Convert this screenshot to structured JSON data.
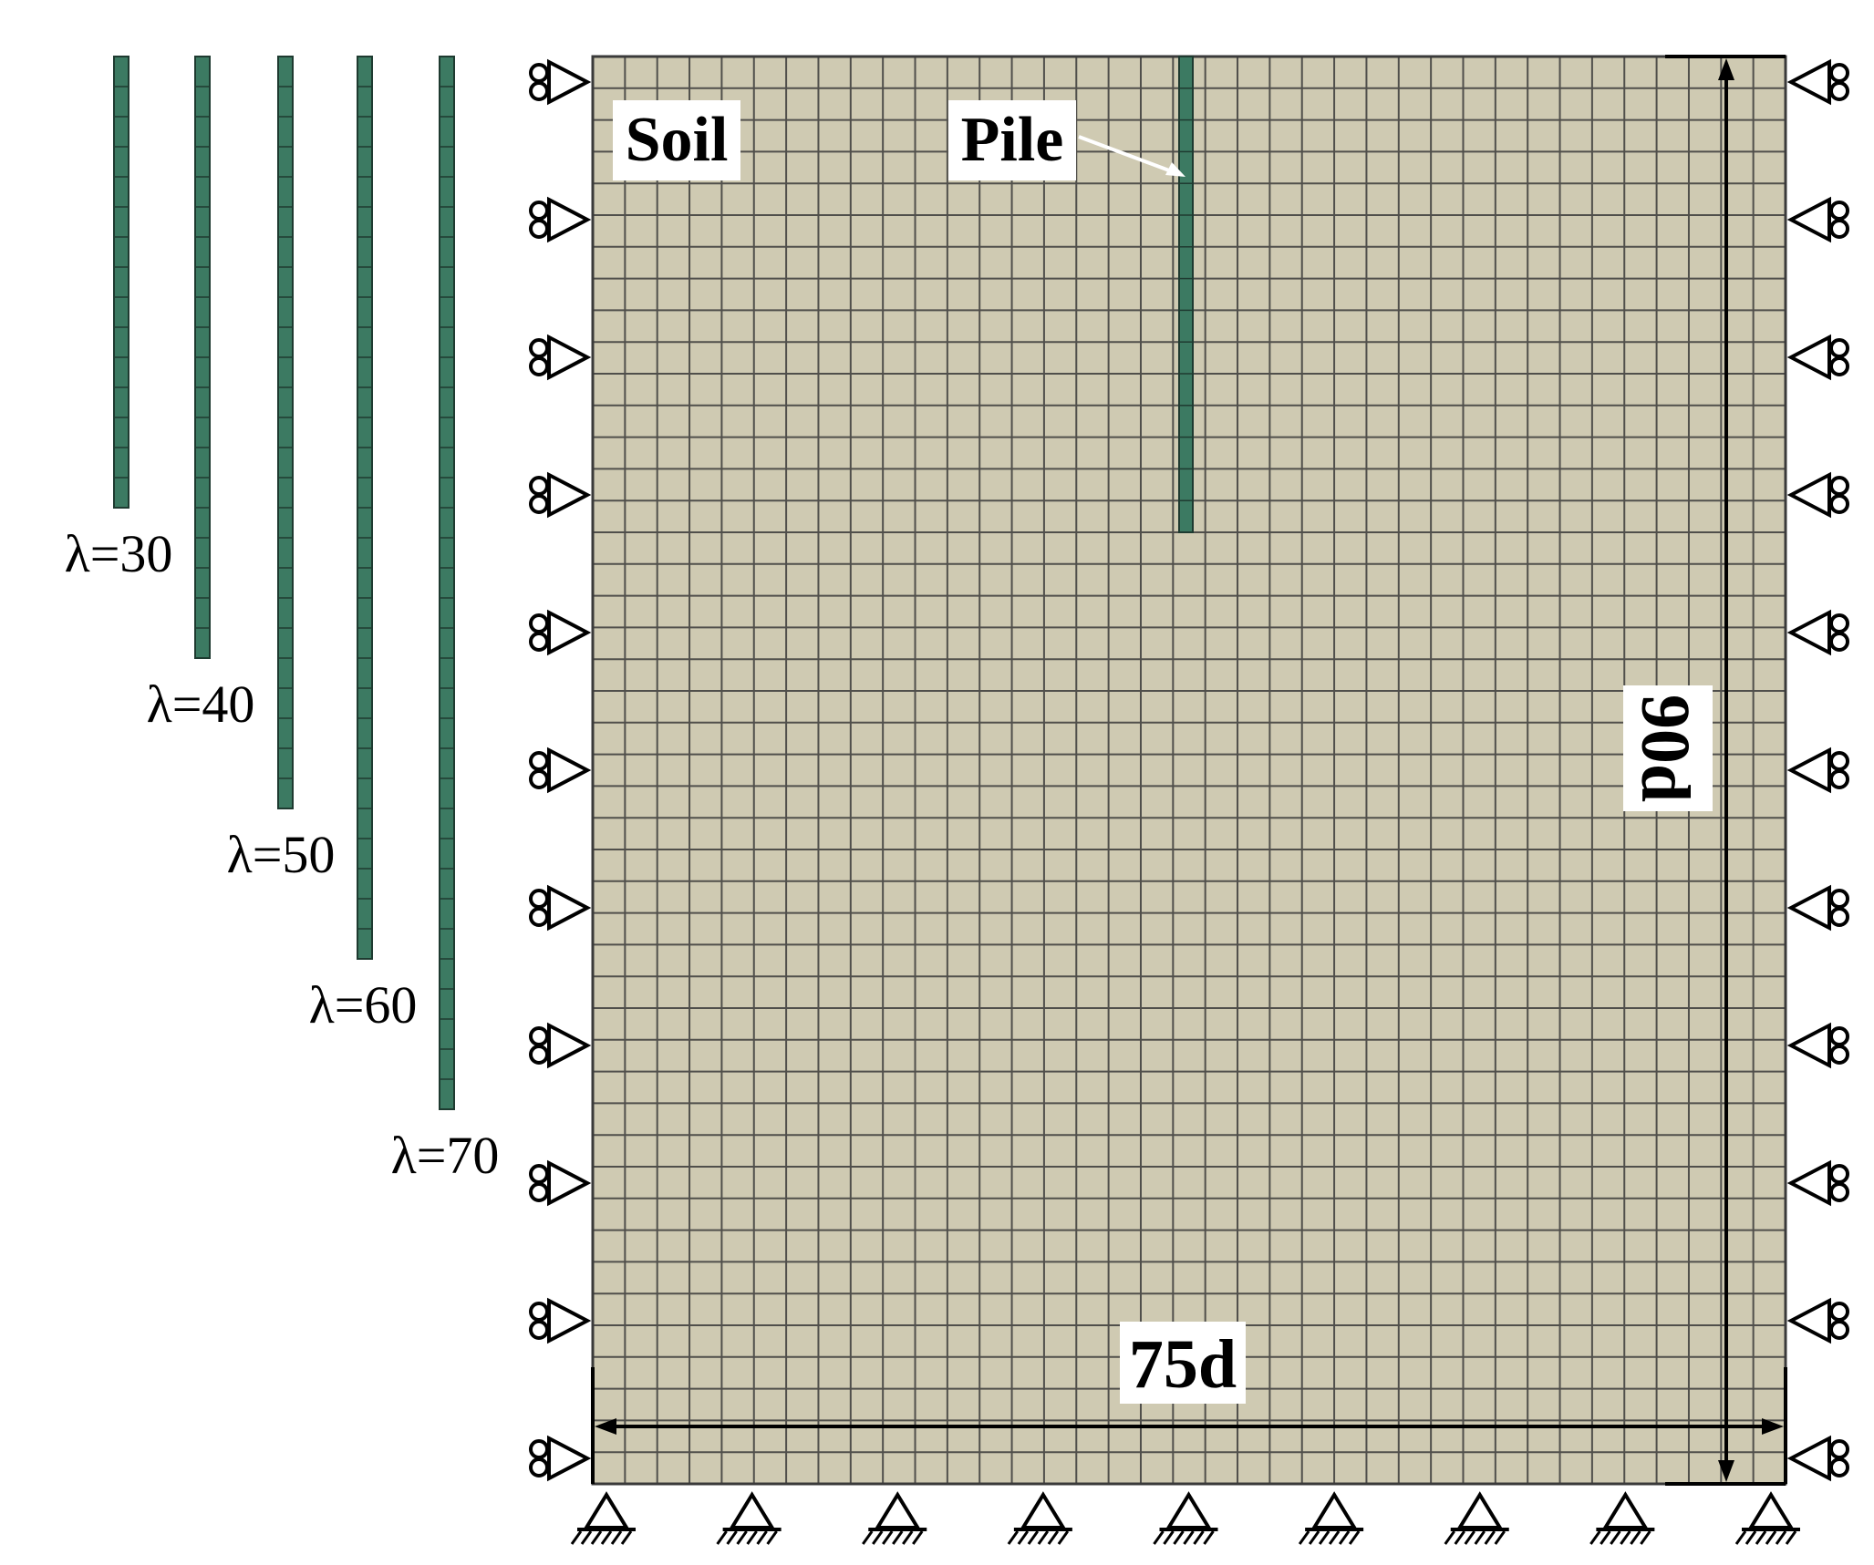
{
  "labels": {
    "soil": "Soil",
    "pile": "Pile",
    "width": "75d",
    "height": "90d"
  },
  "sample_piles": [
    {
      "label": "λ=30",
      "segments": 15
    },
    {
      "label": "λ=40",
      "segments": 20
    },
    {
      "label": "λ=50",
      "segments": 25
    },
    {
      "label": "λ=60",
      "segments": 30
    },
    {
      "label": "λ=70",
      "segments": 35
    }
  ],
  "model": {
    "mesh_columns": 37,
    "mesh_rows": 45,
    "pile_embedded_segments": 15,
    "side_roller_supports_per_side": 11,
    "base_pin_supports": 9
  },
  "colors": {
    "soil": "#cfcab2",
    "mesh_line": "#3a3a3a",
    "pile": "#3c7a62",
    "pile_line": "#1e3a30",
    "ink": "#000000"
  }
}
